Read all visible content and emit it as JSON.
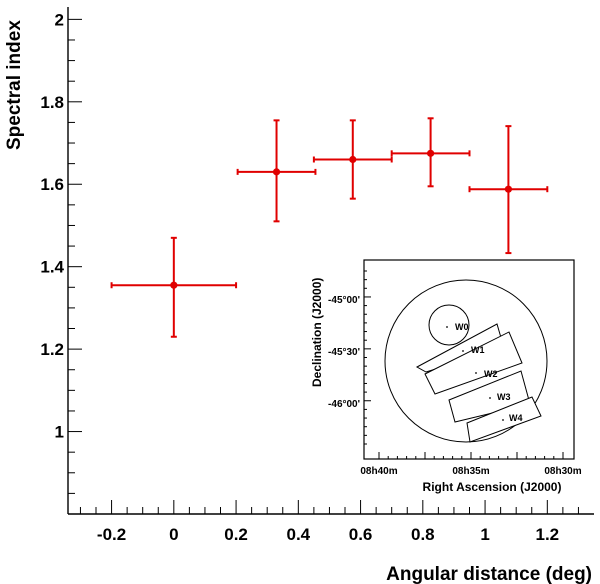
{
  "chart_data": {
    "type": "scatter",
    "title": "",
    "xlabel": "Angular distance (deg)",
    "ylabel": "Spectral index",
    "xlim": [
      -0.34,
      1.35
    ],
    "ylim": [
      0.8,
      2.03
    ],
    "x_ticks": [
      -0.2,
      0,
      0.2,
      0.4,
      0.6,
      0.8,
      1,
      1.2
    ],
    "x_tick_labels": [
      "-0.2",
      "0",
      "0.2",
      "0.4",
      "0.6",
      "0.8",
      "1",
      "1.2"
    ],
    "y_ticks": [
      1,
      1.2,
      1.4,
      1.6,
      1.8,
      2
    ],
    "y_tick_labels": [
      "1",
      "1.2",
      "1.4",
      "1.6",
      "1.8",
      "2"
    ],
    "color": "#e00000",
    "series": [
      {
        "name": "W0-W4",
        "points": [
          {
            "x": 0.0,
            "y": 1.355,
            "xerr": 0.2,
            "yerr_low": 0.125,
            "yerr_high": 0.115
          },
          {
            "x": 0.33,
            "y": 1.63,
            "xerr": 0.125,
            "yerr_low": 0.12,
            "yerr_high": 0.125
          },
          {
            "x": 0.575,
            "y": 1.66,
            "xerr": 0.125,
            "yerr_low": 0.095,
            "yerr_high": 0.095
          },
          {
            "x": 0.825,
            "y": 1.675,
            "xerr": 0.125,
            "yerr_low": 0.08,
            "yerr_high": 0.085
          },
          {
            "x": 1.075,
            "y": 1.588,
            "xerr": 0.125,
            "yerr_low": 0.155,
            "yerr_high": 0.153
          }
        ]
      }
    ],
    "inset": {
      "xlabel": "Right Ascension (J2000)",
      "ylabel": "Declination (J2000)",
      "x_tick_labels": [
        "08h40m",
        "08h35m",
        "08h30m"
      ],
      "y_tick_labels": [
        "-45°00'",
        "-45°30'",
        "-46°00'"
      ],
      "regions": [
        "W0",
        "W1",
        "W2",
        "W3",
        "W4"
      ]
    }
  }
}
